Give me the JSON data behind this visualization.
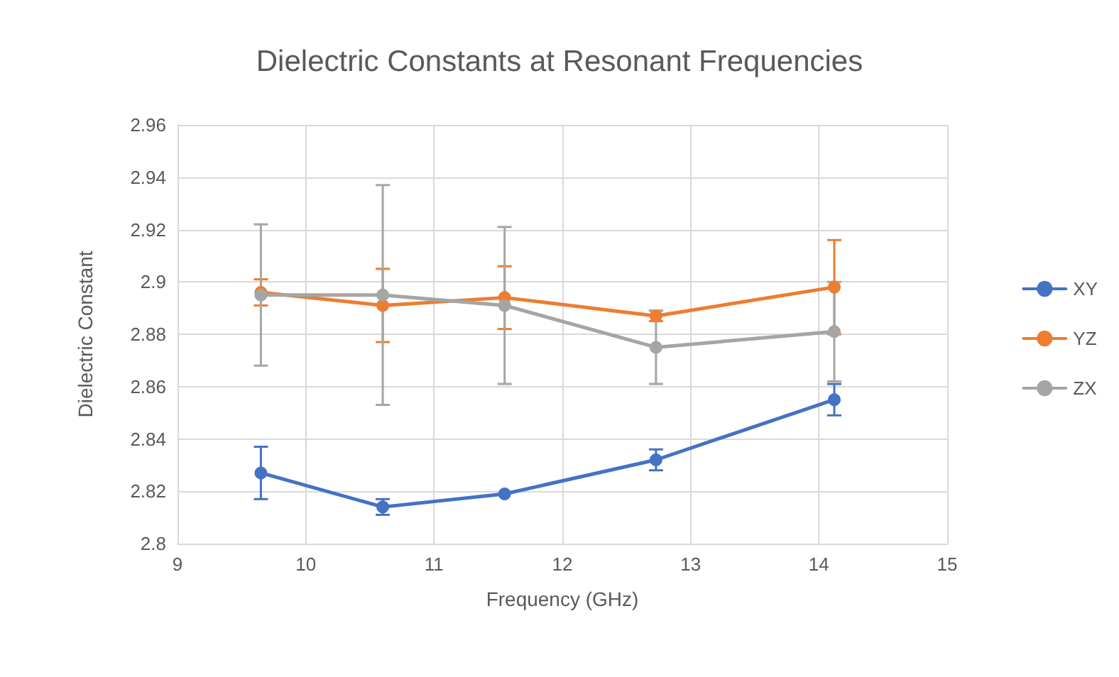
{
  "chart_data": {
    "type": "line",
    "title": "Dielectric Constants at Resonant Frequencies",
    "xlabel": "Frequency (GHz)",
    "ylabel": "Dielectric Constant",
    "x": [
      9.65,
      10.6,
      11.55,
      12.73,
      14.12
    ],
    "series": [
      {
        "name": "XY",
        "color": "#4472c4",
        "values": [
          2.827,
          2.814,
          2.819,
          2.832,
          2.855
        ],
        "errors": [
          0.01,
          0.003,
          null,
          0.004,
          0.006
        ]
      },
      {
        "name": "YZ",
        "color": "#ed7d31",
        "values": [
          2.896,
          2.891,
          2.894,
          2.887,
          2.898
        ],
        "errors": [
          0.005,
          0.014,
          0.012,
          0.002,
          0.018
        ]
      },
      {
        "name": "ZX",
        "color": "#a5a5a5",
        "values": [
          2.895,
          2.895,
          2.891,
          2.875,
          2.881
        ],
        "errors": [
          0.027,
          0.042,
          0.03,
          0.014,
          0.019
        ]
      }
    ],
    "xlim": [
      9,
      15
    ],
    "xticks": [
      9,
      10,
      11,
      12,
      13,
      14,
      15
    ],
    "ylim": [
      2.8,
      2.96
    ],
    "yticks": [
      2.8,
      2.82,
      2.84,
      2.86,
      2.88,
      2.9,
      2.92,
      2.94,
      2.96
    ],
    "grid": true,
    "legend": "right",
    "marker": "circle",
    "line_style": "solid"
  }
}
